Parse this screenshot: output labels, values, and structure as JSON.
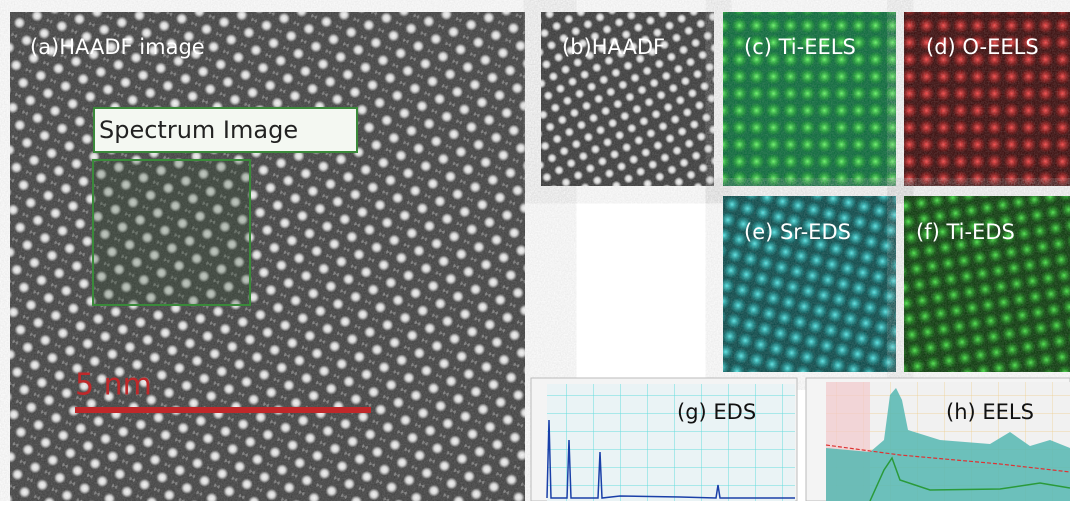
{
  "panels": [
    {
      "label": "(a)HAADF image"
    },
    {
      "label": "(b)HAADF"
    },
    {
      "label": "(c) Ti-EELS"
    },
    {
      "label": "(d) O-EELS"
    },
    {
      "label": "(e) Sr-EDS"
    },
    {
      "label": "(f) Ti-EDS"
    },
    {
      "label": "(g) EDS"
    },
    {
      "label": "(h) EELS"
    }
  ],
  "spectrum_box_label": "Spectrum Image",
  "scale_bar_label": "5 nm"
}
